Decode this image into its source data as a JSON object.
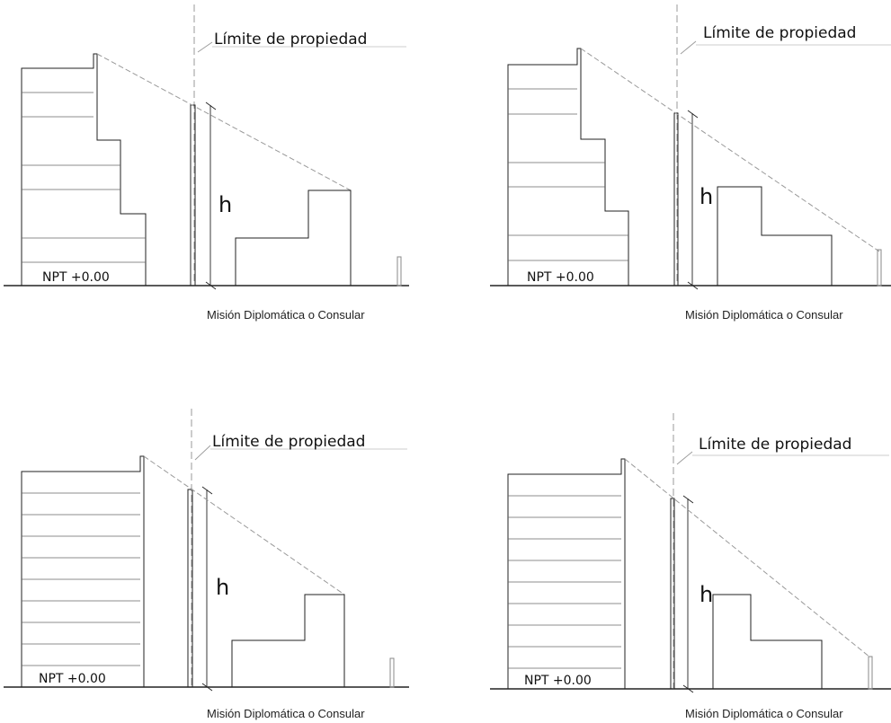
{
  "labels": {
    "property_limit": "Límite de propiedad",
    "height": "h",
    "level": "NPT  +0.00",
    "caption": "Misión Diplomática o Consular"
  },
  "colors": {
    "line": "#222222",
    "dashed": "#999999"
  }
}
